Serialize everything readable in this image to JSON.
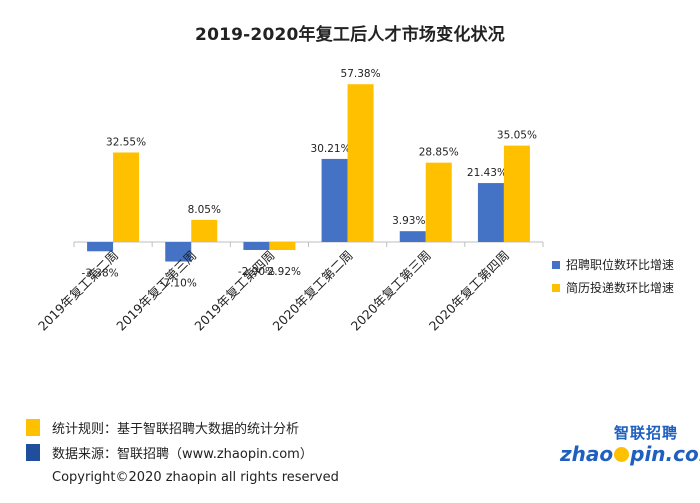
{
  "title": "2019-2020年复工后人才市场变化状况",
  "chart_data": {
    "type": "bar",
    "categories": [
      "2019年复工第二周",
      "2019年复工第三周",
      "2019年复工第四周",
      "2020年复工第二周",
      "2020年复工第三周",
      "2020年复工第四周"
    ],
    "series": [
      {
        "name": "招聘职位数环比增速",
        "values": [
          -3.38,
          -7.1,
          -2.9,
          30.21,
          3.93,
          21.43
        ],
        "labels": [
          "-3.38%",
          "-7.10%",
          "-2.90%",
          "30.21%",
          "3.93%",
          "21.43%"
        ],
        "color": "#4472c4"
      },
      {
        "name": "简历投递数环比增速",
        "values": [
          32.55,
          8.05,
          -2.92,
          57.38,
          28.85,
          35.05
        ],
        "labels": [
          "32.55%",
          "8.05%",
          "-2.92%",
          "57.38%",
          "28.85%",
          "35.05%"
        ],
        "color": "#ffc000"
      }
    ],
    "ylim": [
      -12,
      62
    ],
    "grid": false,
    "legend_position": "right"
  },
  "notes": {
    "rule": "统计规则：基于智联招聘大数据的统计分析",
    "rule_color": "#ffc000",
    "source": "数据来源：智联招聘（www.zhaopin.com）",
    "source_color": "#1f4e9c"
  },
  "copyright": "Copyright©2020 zhaopin all rights reserved",
  "logo": {
    "top": "智联招聘",
    "main_left": "zhao",
    "main_right": "pin.com"
  }
}
